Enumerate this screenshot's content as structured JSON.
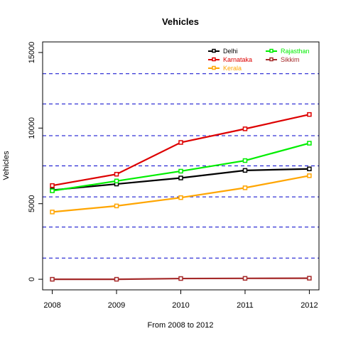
{
  "chart_data": {
    "type": "line",
    "title": "Vehicles",
    "xlabel": "From 2008 to 2012",
    "ylabel": "Vehicles",
    "x": [
      2008,
      2009,
      2010,
      2011,
      2012
    ],
    "xlim": [
      2007.85,
      2012.15
    ],
    "ylim": [
      -700,
      15700
    ],
    "yticks": [
      0,
      5000,
      10000,
      15000
    ],
    "hlines": [
      1400,
      3450,
      5450,
      7500,
      9500,
      11600,
      13600
    ],
    "hline_color": "#0000cc",
    "series": [
      {
        "name": "Delhi",
        "color": "#000000",
        "values": [
          5900,
          6300,
          6700,
          7200,
          7300
        ]
      },
      {
        "name": "Karnataka",
        "color": "#dd0000",
        "values": [
          6200,
          6950,
          9050,
          9950,
          10900
        ]
      },
      {
        "name": "Kerala",
        "color": "#ffa500",
        "values": [
          4450,
          4850,
          5400,
          6050,
          6850
        ]
      },
      {
        "name": "Rajasthan",
        "color": "#00ee00",
        "values": [
          5850,
          6500,
          7150,
          7850,
          9000
        ]
      },
      {
        "name": "Sikkim",
        "color": "#a52a2a",
        "values": [
          0,
          0,
          50,
          60,
          70
        ]
      }
    ],
    "legend_position": "top-right"
  }
}
